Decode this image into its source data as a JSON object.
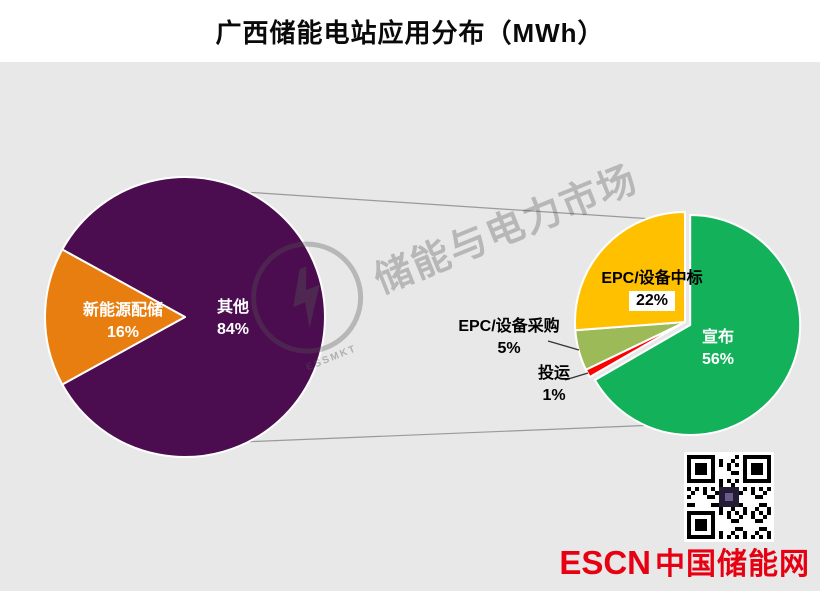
{
  "watermark": {
    "text": "储能与电力市场",
    "logo_sub": "ESSMKT"
  },
  "footer": {
    "brand_en": "ESCN",
    "brand_cn": "中国储能网",
    "brand_color": "#E60012"
  },
  "chart_data": {
    "type": "pie",
    "subtype": "pie-of-pie",
    "title": "广西储能电站应用分布（MWh）",
    "unit": "MWh",
    "legend": "none",
    "main_pie": {
      "total": 100,
      "slices": [
        {
          "label": "其他",
          "value": 84,
          "pct": "84%",
          "color": "#4B0D4F"
        },
        {
          "label": "新能源配储",
          "value": 16,
          "pct": "16%",
          "color": "#E87E10"
        }
      ]
    },
    "secondary_pie": {
      "note": "breakdown of 其他 84%",
      "total": 84,
      "slices": [
        {
          "label": "宣布",
          "value": 56,
          "pct": "56%",
          "color": "#14B15B"
        },
        {
          "label": "投运",
          "value": 1,
          "pct": "1%",
          "color": "#FE0000"
        },
        {
          "label": "EPC/设备采购",
          "value": 5,
          "pct": "5%",
          "color": "#9CBB58"
        },
        {
          "label": "EPC/设备中标",
          "value": 22,
          "pct": "22%",
          "color": "#FFC000"
        }
      ]
    }
  }
}
